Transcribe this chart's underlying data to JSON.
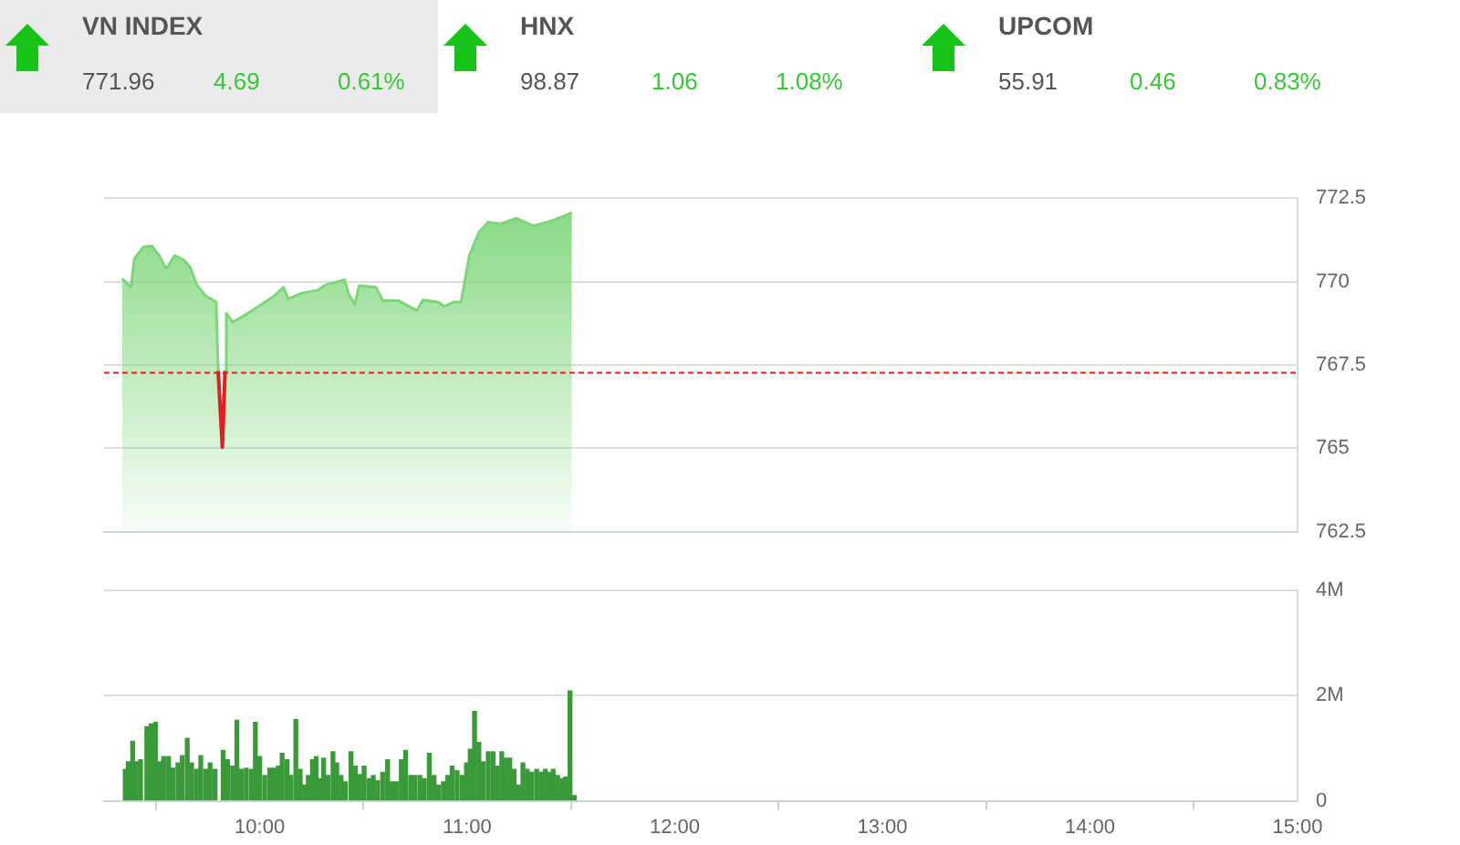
{
  "chart_data": [
    {
      "type": "other",
      "annotations": [
        "VN INDEX",
        "771.96",
        "4.69",
        "0.61%",
        "HNX",
        "98.87",
        "1.06",
        "1.08%",
        "UPCOM",
        "55.91",
        "0.46",
        "0.83%"
      ]
    },
    {
      "type": "area",
      "xlim": [
        9.25,
        15
      ],
      "ylim": [
        762.5,
        772.5
      ],
      "yticks": [
        762.5,
        765,
        767.5,
        770,
        772.5
      ],
      "tick_labels": "y",
      "grid": "y",
      "legend": false,
      "ref_lines": [
        {
          "axis": "y",
          "value": 767.27,
          "color": "#e02020",
          "line_style": "dashed"
        }
      ],
      "series": [
        {
          "type": "area",
          "color": "#7ed67a",
          "x": [
            9.337,
            9.38,
            9.396,
            9.44,
            9.48,
            9.516,
            9.55,
            9.59,
            9.636,
            9.665,
            9.696,
            9.74,
            9.79,
            9.8,
            9.82,
            9.833,
            9.839,
            9.869,
            9.92,
            9.994,
            10.07,
            10.114,
            10.138,
            10.2,
            10.278,
            10.32,
            10.41,
            10.427,
            10.458,
            10.479,
            10.56,
            10.593,
            10.667,
            10.757,
            10.786,
            10.86,
            10.89,
            10.936,
            10.97,
            11.01,
            11.055,
            11.1,
            11.16,
            11.235,
            11.32,
            11.4,
            11.46,
            11.504
          ],
          "values": [
            770.09,
            769.83,
            770.69,
            771.04,
            771.07,
            770.78,
            770.38,
            770.78,
            770.64,
            770.43,
            769.91,
            769.57,
            769.39,
            767.32,
            765.04,
            767.32,
            769.05,
            768.79,
            768.96,
            769.26,
            769.57,
            769.83,
            769.48,
            769.65,
            769.74,
            769.91,
            770.05,
            769.65,
            769.31,
            769.88,
            769.83,
            769.43,
            769.43,
            769.13,
            769.45,
            769.39,
            769.26,
            769.39,
            769.39,
            770.78,
            771.47,
            771.78,
            771.73,
            771.9,
            771.67,
            771.81,
            771.95,
            772.07
          ]
        },
        {
          "type": "line",
          "color": "#e02020",
          "x": [
            9.8,
            9.82,
            9.833
          ],
          "values": [
            767.32,
            765.04,
            767.32
          ]
        }
      ]
    },
    {
      "type": "bar",
      "xlim": [
        9.25,
        15
      ],
      "xticks": [
        {
          "value": 10,
          "label": "10:00"
        },
        {
          "value": 11,
          "label": "11:00"
        },
        {
          "value": 12,
          "label": "12:00"
        },
        {
          "value": 13,
          "label": "13:00"
        },
        {
          "value": 14,
          "label": "14:00"
        },
        {
          "value": 15,
          "label": "15:00"
        }
      ],
      "ylim": [
        0,
        4
      ],
      "yticks": [
        0,
        {
          "value": 2,
          "label": "2M"
        },
        {
          "value": 4,
          "label": "4M"
        }
      ],
      "grid": "y",
      "legend": false,
      "series": [
        {
          "color": "#3a9a3a",
          "x": [
            9.352,
            9.367,
            9.388,
            9.405,
            9.426,
            9.456,
            9.477,
            9.498,
            9.516,
            9.537,
            9.561,
            9.582,
            9.606,
            9.627,
            9.651,
            9.672,
            9.695,
            9.716,
            9.74,
            9.761,
            9.785,
            9.824,
            9.845,
            9.869,
            9.89,
            9.911,
            9.935,
            9.959,
            9.979,
            10.0,
            10.024,
            10.048,
            10.069,
            10.09,
            10.108,
            10.132,
            10.15,
            10.174,
            10.195,
            10.216,
            10.234,
            10.254,
            10.272,
            10.293,
            10.308,
            10.329,
            10.353,
            10.371,
            10.392,
            10.413,
            10.44,
            10.461,
            10.482,
            10.503,
            10.527,
            10.547,
            10.568,
            10.592,
            10.616,
            10.637,
            10.658,
            10.682,
            10.703,
            10.727,
            10.748,
            10.772,
            10.793,
            10.817,
            10.84,
            10.861,
            10.885,
            10.906,
            10.927,
            10.951,
            10.975,
            10.996,
            11.014,
            11.035,
            11.056,
            11.077,
            11.101,
            11.124,
            11.145,
            11.166,
            11.184,
            11.205,
            11.226,
            11.247,
            11.268,
            11.289,
            11.31,
            11.334,
            11.355,
            11.376,
            11.394,
            11.414,
            11.435,
            11.456,
            11.474,
            11.495,
            11.516
          ],
          "values": [
            0.6,
            0.74,
            1.13,
            0.74,
            0.78,
            1.41,
            1.46,
            1.49,
            0.74,
            0.84,
            0.84,
            0.62,
            0.72,
            0.86,
            1.19,
            0.72,
            0.6,
            0.86,
            0.6,
            0.72,
            0.6,
            0.96,
            0.78,
            0.66,
            1.53,
            0.6,
            0.62,
            0.6,
            1.49,
            0.84,
            0.48,
            0.62,
            0.62,
            0.66,
            0.9,
            0.78,
            0.48,
            1.55,
            0.6,
            0.3,
            0.48,
            0.78,
            0.84,
            0.42,
            0.81,
            0.48,
            0.93,
            0.72,
            0.48,
            0.36,
            0.93,
            0.66,
            0.5,
            0.66,
            0.42,
            0.48,
            0.38,
            0.54,
            0.78,
            0.36,
            0.36,
            0.78,
            0.96,
            0.48,
            0.48,
            0.48,
            0.42,
            0.9,
            0.48,
            0.3,
            0.36,
            0.48,
            0.66,
            0.57,
            0.48,
            0.72,
            0.98,
            1.7,
            1.11,
            0.74,
            0.93,
            0.93,
            0.66,
            0.93,
            0.81,
            0.81,
            0.6,
            0.3,
            0.72,
            0.6,
            0.54,
            0.6,
            0.54,
            0.6,
            0.54,
            0.6,
            0.48,
            0.42,
            0.45,
            2.09,
            0.1
          ]
        }
      ]
    }
  ]
}
